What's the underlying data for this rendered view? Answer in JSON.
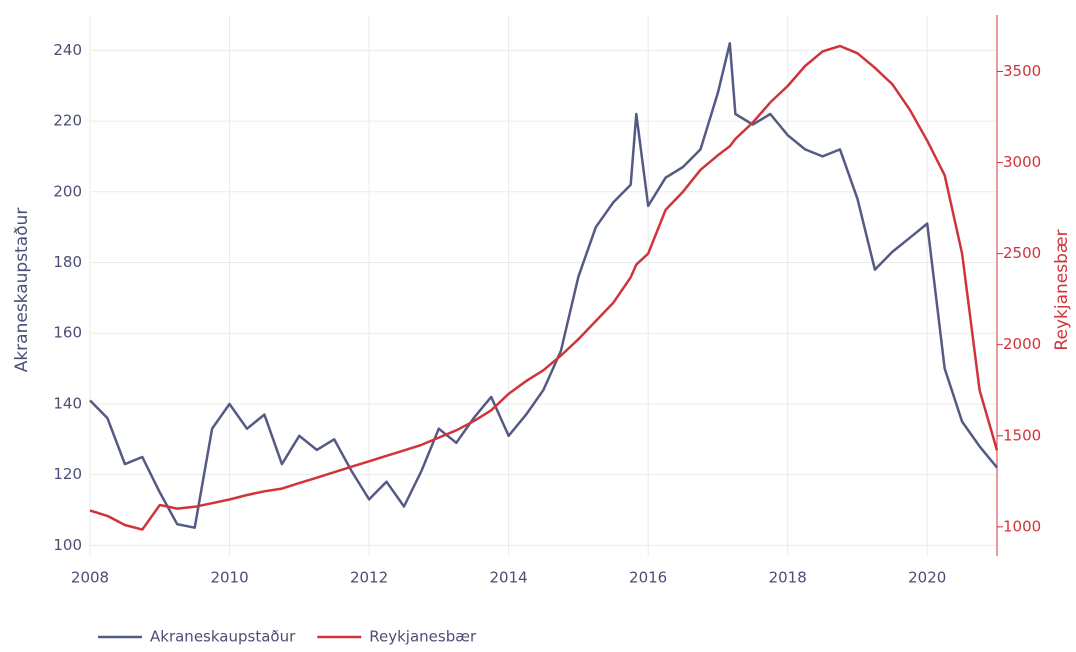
{
  "chart_data": {
    "type": "line",
    "x": [
      2008.0,
      2008.25,
      2008.5,
      2008.75,
      2009.0,
      2009.25,
      2009.5,
      2009.75,
      2010.0,
      2010.25,
      2010.5,
      2010.75,
      2011.0,
      2011.25,
      2011.5,
      2011.75,
      2012.0,
      2012.25,
      2012.5,
      2012.75,
      2013.0,
      2013.25,
      2013.5,
      2013.75,
      2014.0,
      2014.25,
      2014.5,
      2014.75,
      2015.0,
      2015.25,
      2015.5,
      2015.75,
      2015.83,
      2016.0,
      2016.25,
      2016.5,
      2016.75,
      2017.0,
      2017.17,
      2017.25,
      2017.5,
      2017.75,
      2018.0,
      2018.25,
      2018.5,
      2018.75,
      2019.0,
      2019.25,
      2019.5,
      2019.75,
      2020.0,
      2020.25,
      2020.5,
      2020.75,
      2021.0
    ],
    "series": [
      {
        "name": "Akraneskaupstaður",
        "color": "#555a85",
        "axis": "y",
        "values": [
          141,
          136,
          123,
          125,
          115,
          106,
          105,
          133,
          140,
          133,
          137,
          123,
          131,
          127,
          130,
          121,
          113,
          118,
          111,
          121,
          133,
          129,
          136,
          142,
          131,
          137,
          144,
          155,
          176,
          190,
          197,
          202,
          222,
          196,
          204,
          207,
          212,
          228,
          242,
          222,
          219,
          222,
          216,
          212,
          210,
          212,
          198,
          178,
          183,
          187,
          191,
          150,
          135,
          128,
          122
        ]
      },
      {
        "name": "Reykjanesbær",
        "color": "#d0343a",
        "axis": "y2",
        "values": [
          1090,
          1060,
          1010,
          985,
          1120,
          1100,
          1110,
          1130,
          1150,
          1175,
          1195,
          1210,
          1240,
          1270,
          1300,
          1330,
          1360,
          1390,
          1420,
          1450,
          1490,
          1530,
          1580,
          1640,
          1730,
          1800,
          1860,
          1940,
          2030,
          2130,
          2230,
          2370,
          2440,
          2500,
          2740,
          2840,
          2960,
          3040,
          3090,
          3130,
          3220,
          3330,
          3420,
          3530,
          3610,
          3640,
          3600,
          3520,
          3430,
          3290,
          3120,
          2930,
          2500,
          1750,
          1420
        ]
      }
    ],
    "y_label": "Akraneskaupstaður",
    "y2_label": "Reykjanesbær",
    "xlim": [
      2008,
      2021
    ],
    "xticks": [
      2008,
      2010,
      2012,
      2014,
      2016,
      2018,
      2020
    ],
    "ylim": [
      97,
      250
    ],
    "yticks": [
      100,
      120,
      140,
      160,
      180,
      200,
      220,
      240
    ],
    "y2lim": [
      840,
      3810
    ],
    "y2ticks": [
      1000,
      1500,
      2000,
      2500,
      3000,
      3500
    ],
    "grid": true,
    "legend": "bottom"
  }
}
